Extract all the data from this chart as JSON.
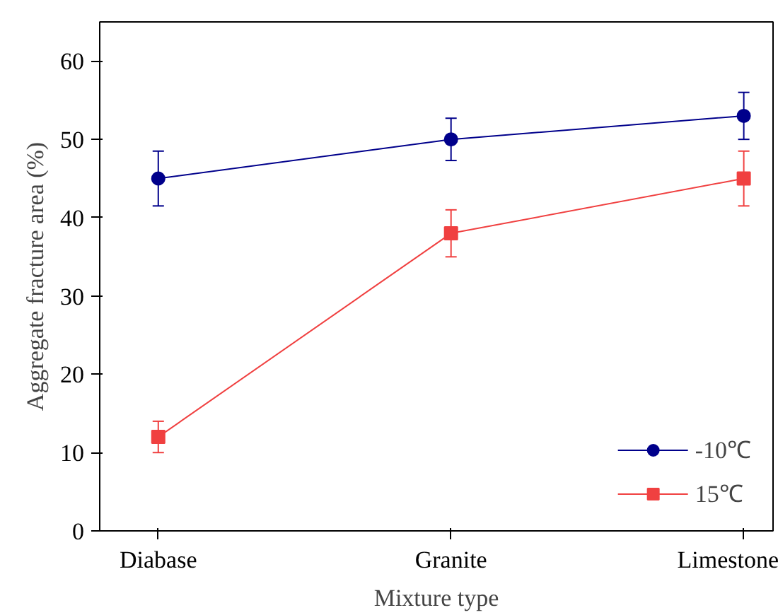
{
  "chart_data": {
    "type": "line",
    "xlabel": "Mixture type",
    "ylabel": "Aggregate fracture area (%)",
    "categories": [
      "Diabase",
      "Granite",
      "Limestone"
    ],
    "series": [
      {
        "name": "-10℃",
        "color": "#00008b",
        "marker": "circle",
        "values": [
          45,
          50,
          53
        ],
        "errors": [
          3.5,
          2.7,
          3
        ]
      },
      {
        "name": "15℃",
        "color": "#f04040",
        "marker": "square",
        "values": [
          12,
          38,
          45
        ],
        "errors": [
          2,
          3,
          3.5
        ]
      }
    ],
    "ylim": [
      0,
      65
    ],
    "yticks": [
      0,
      10,
      20,
      30,
      40,
      50,
      60
    ],
    "grid": false,
    "legend": "bottom right",
    "line_style": "solid"
  }
}
